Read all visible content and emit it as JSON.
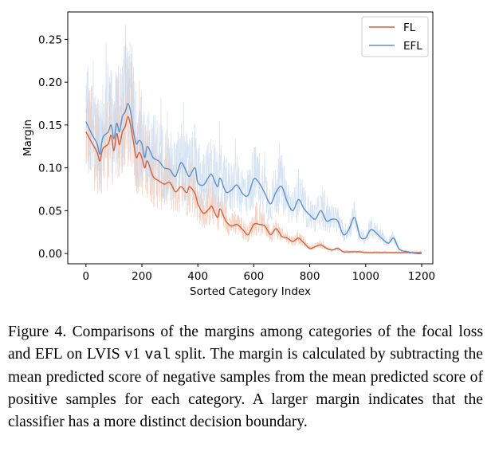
{
  "chart_data": {
    "type": "line",
    "title": "",
    "xlabel": "Sorted Category Index",
    "ylabel": "Margin",
    "xlim": [
      -65,
      1240
    ],
    "ylim": [
      -0.012,
      0.282
    ],
    "xticks": [
      0,
      200,
      400,
      600,
      800,
      1000,
      1200
    ],
    "xtick_labels": [
      "0",
      "200",
      "400",
      "600",
      "800",
      "1000",
      "1200"
    ],
    "yticks": [
      0.0,
      0.05,
      0.1,
      0.15,
      0.2,
      0.25
    ],
    "ytick_labels": [
      "0.00",
      "0.05",
      "0.10",
      "0.15",
      "0.20",
      "0.25"
    ],
    "grid": false,
    "legend_position": "top-right",
    "series": [
      {
        "name": "FL",
        "color": "#d65f3b",
        "raw_color": "#f2c4b0",
        "smoothed": {
          "x": [
            0,
            20,
            40,
            50,
            60,
            80,
            90,
            100,
            110,
            120,
            130,
            140,
            150,
            160,
            170,
            180,
            190,
            200,
            210,
            220,
            240,
            260,
            280,
            300,
            320,
            340,
            360,
            370,
            390,
            400,
            420,
            440,
            450,
            470,
            480,
            500,
            520,
            540,
            560,
            580,
            600,
            620,
            640,
            660,
            680,
            700,
            720,
            740,
            760,
            780,
            800,
            820,
            840,
            860,
            880,
            900,
            920,
            940,
            960,
            980,
            1000,
            1050,
            1100,
            1150,
            1200
          ],
          "y": [
            0.142,
            0.13,
            0.118,
            0.108,
            0.122,
            0.128,
            0.138,
            0.12,
            0.14,
            0.127,
            0.142,
            0.148,
            0.16,
            0.149,
            0.13,
            0.112,
            0.118,
            0.112,
            0.1,
            0.108,
            0.09,
            0.085,
            0.081,
            0.083,
            0.072,
            0.078,
            0.071,
            0.078,
            0.07,
            0.058,
            0.047,
            0.052,
            0.055,
            0.042,
            0.052,
            0.038,
            0.032,
            0.034,
            0.028,
            0.022,
            0.034,
            0.034,
            0.032,
            0.022,
            0.029,
            0.02,
            0.018,
            0.014,
            0.018,
            0.012,
            0.006,
            0.008,
            0.01,
            0.006,
            0.004,
            0.006,
            0.002,
            0.002,
            0.002,
            0.002,
            0.001,
            0.001,
            0.001,
            0.001,
            0.001
          ]
        }
      },
      {
        "name": "EFL",
        "color": "#5b8fc9",
        "raw_color": "#c9dbef",
        "smoothed": {
          "x": [
            0,
            20,
            40,
            50,
            60,
            80,
            90,
            100,
            110,
            120,
            130,
            140,
            150,
            160,
            170,
            180,
            190,
            200,
            210,
            220,
            240,
            260,
            280,
            300,
            320,
            340,
            360,
            370,
            390,
            400,
            420,
            440,
            450,
            470,
            480,
            500,
            520,
            540,
            560,
            580,
            600,
            620,
            640,
            660,
            680,
            700,
            720,
            740,
            760,
            780,
            800,
            820,
            840,
            860,
            880,
            900,
            920,
            940,
            960,
            980,
            1000,
            1020,
            1050,
            1080,
            1100,
            1120,
            1150,
            1180,
            1200
          ],
          "y": [
            0.154,
            0.14,
            0.128,
            0.116,
            0.135,
            0.142,
            0.15,
            0.134,
            0.152,
            0.142,
            0.16,
            0.165,
            0.175,
            0.165,
            0.142,
            0.128,
            0.132,
            0.128,
            0.112,
            0.125,
            0.112,
            0.108,
            0.1,
            0.098,
            0.09,
            0.106,
            0.095,
            0.09,
            0.1,
            0.083,
            0.08,
            0.09,
            0.092,
            0.078,
            0.088,
            0.072,
            0.074,
            0.08,
            0.07,
            0.068,
            0.087,
            0.082,
            0.07,
            0.058,
            0.072,
            0.078,
            0.06,
            0.05,
            0.063,
            0.052,
            0.045,
            0.04,
            0.05,
            0.038,
            0.04,
            0.038,
            0.022,
            0.028,
            0.042,
            0.02,
            0.018,
            0.028,
            0.02,
            0.012,
            0.018,
            0.005,
            0.002,
            0.0,
            0.0
          ]
        }
      }
    ]
  },
  "caption": {
    "part1": "Figure 4.  Comparisons of the margins among categories of the focal loss and EFL on LVIS v1 ",
    "mono": "val",
    "part2": " split. The margin is calculated by subtracting the mean predicted score of negative samples from the mean predicted score of positive samples for each category. A larger margin indicates that the classifier has a more distinct decision boundary."
  }
}
